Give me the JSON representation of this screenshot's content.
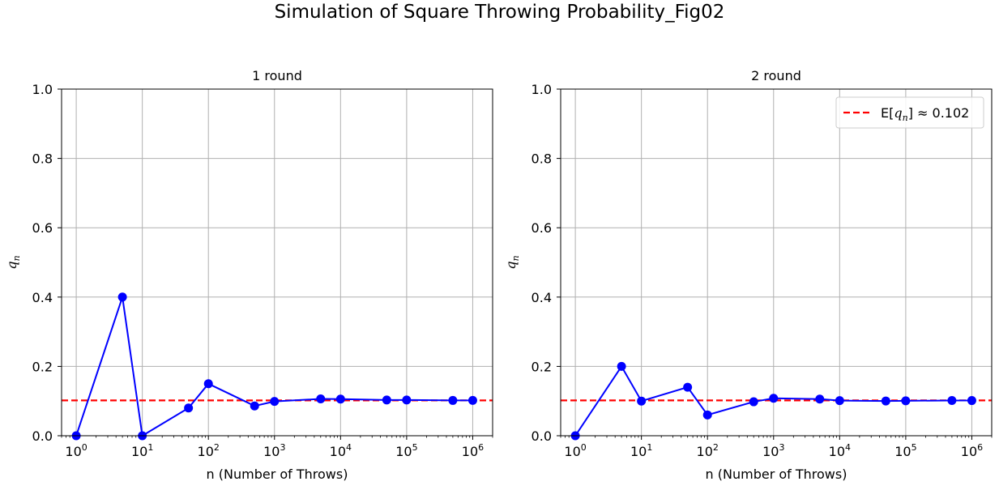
{
  "title": "Simulation of Square Throwing Probability_Fig02",
  "chart_data": [
    {
      "type": "line",
      "title": "1 round",
      "xlabel": "n (Number of Throws)",
      "ylabel": "q",
      "ylabel_sub": "n",
      "xscale": "log",
      "xlim": [
        0.6,
        2000000
      ],
      "ylim": [
        0,
        1
      ],
      "xticks": [
        {
          "base": "10",
          "exp": "0",
          "value": 1
        },
        {
          "base": "10",
          "exp": "1",
          "value": 10
        },
        {
          "base": "10",
          "exp": "2",
          "value": 100
        },
        {
          "base": "10",
          "exp": "3",
          "value": 1000
        },
        {
          "base": "10",
          "exp": "4",
          "value": 10000
        },
        {
          "base": "10",
          "exp": "5",
          "value": 100000
        },
        {
          "base": "10",
          "exp": "6",
          "value": 1000000
        }
      ],
      "yticks": [
        "0.0",
        "0.2",
        "0.4",
        "0.6",
        "0.8",
        "1.0"
      ],
      "grid": true,
      "series": [
        {
          "color": "#0000ff",
          "marker": "circle",
          "x": [
            1,
            5,
            10,
            50,
            100,
            500,
            1000,
            5000,
            10000,
            50000,
            100000,
            500000,
            1000000
          ],
          "y": [
            0.0,
            0.4,
            0.0,
            0.08,
            0.15,
            0.086,
            0.099,
            0.1062,
            0.1057,
            0.1032,
            0.1031,
            0.1018,
            0.102
          ]
        }
      ],
      "reference_line": {
        "y": 0.102,
        "color": "#ff0000",
        "style": "dashed"
      }
    },
    {
      "type": "line",
      "title": "2 round",
      "xlabel": "n (Number of Throws)",
      "ylabel": "q",
      "ylabel_sub": "n",
      "xscale": "log",
      "xlim": [
        0.6,
        2000000
      ],
      "ylim": [
        0,
        1
      ],
      "xticks": [
        {
          "base": "10",
          "exp": "0",
          "value": 1
        },
        {
          "base": "10",
          "exp": "1",
          "value": 10
        },
        {
          "base": "10",
          "exp": "2",
          "value": 100
        },
        {
          "base": "10",
          "exp": "3",
          "value": 1000
        },
        {
          "base": "10",
          "exp": "4",
          "value": 10000
        },
        {
          "base": "10",
          "exp": "5",
          "value": 100000
        },
        {
          "base": "10",
          "exp": "6",
          "value": 1000000
        }
      ],
      "yticks": [
        "0.0",
        "0.2",
        "0.4",
        "0.6",
        "0.8",
        "1.0"
      ],
      "grid": true,
      "series": [
        {
          "color": "#0000ff",
          "marker": "circle",
          "x": [
            1,
            5,
            10,
            50,
            100,
            500,
            1000,
            5000,
            10000,
            50000,
            100000,
            500000,
            1000000
          ],
          "y": [
            0.0,
            0.2,
            0.1,
            0.14,
            0.06,
            0.098,
            0.108,
            0.1058,
            0.1014,
            0.1003,
            0.1008,
            0.1017,
            0.1015
          ]
        }
      ],
      "reference_line": {
        "y": 0.102,
        "color": "#ff0000",
        "style": "dashed"
      },
      "legend": {
        "placement": "top-right",
        "prefix": "E[",
        "var": "q",
        "sub": "n",
        "suffix": "] ≈ 0.102"
      }
    }
  ]
}
